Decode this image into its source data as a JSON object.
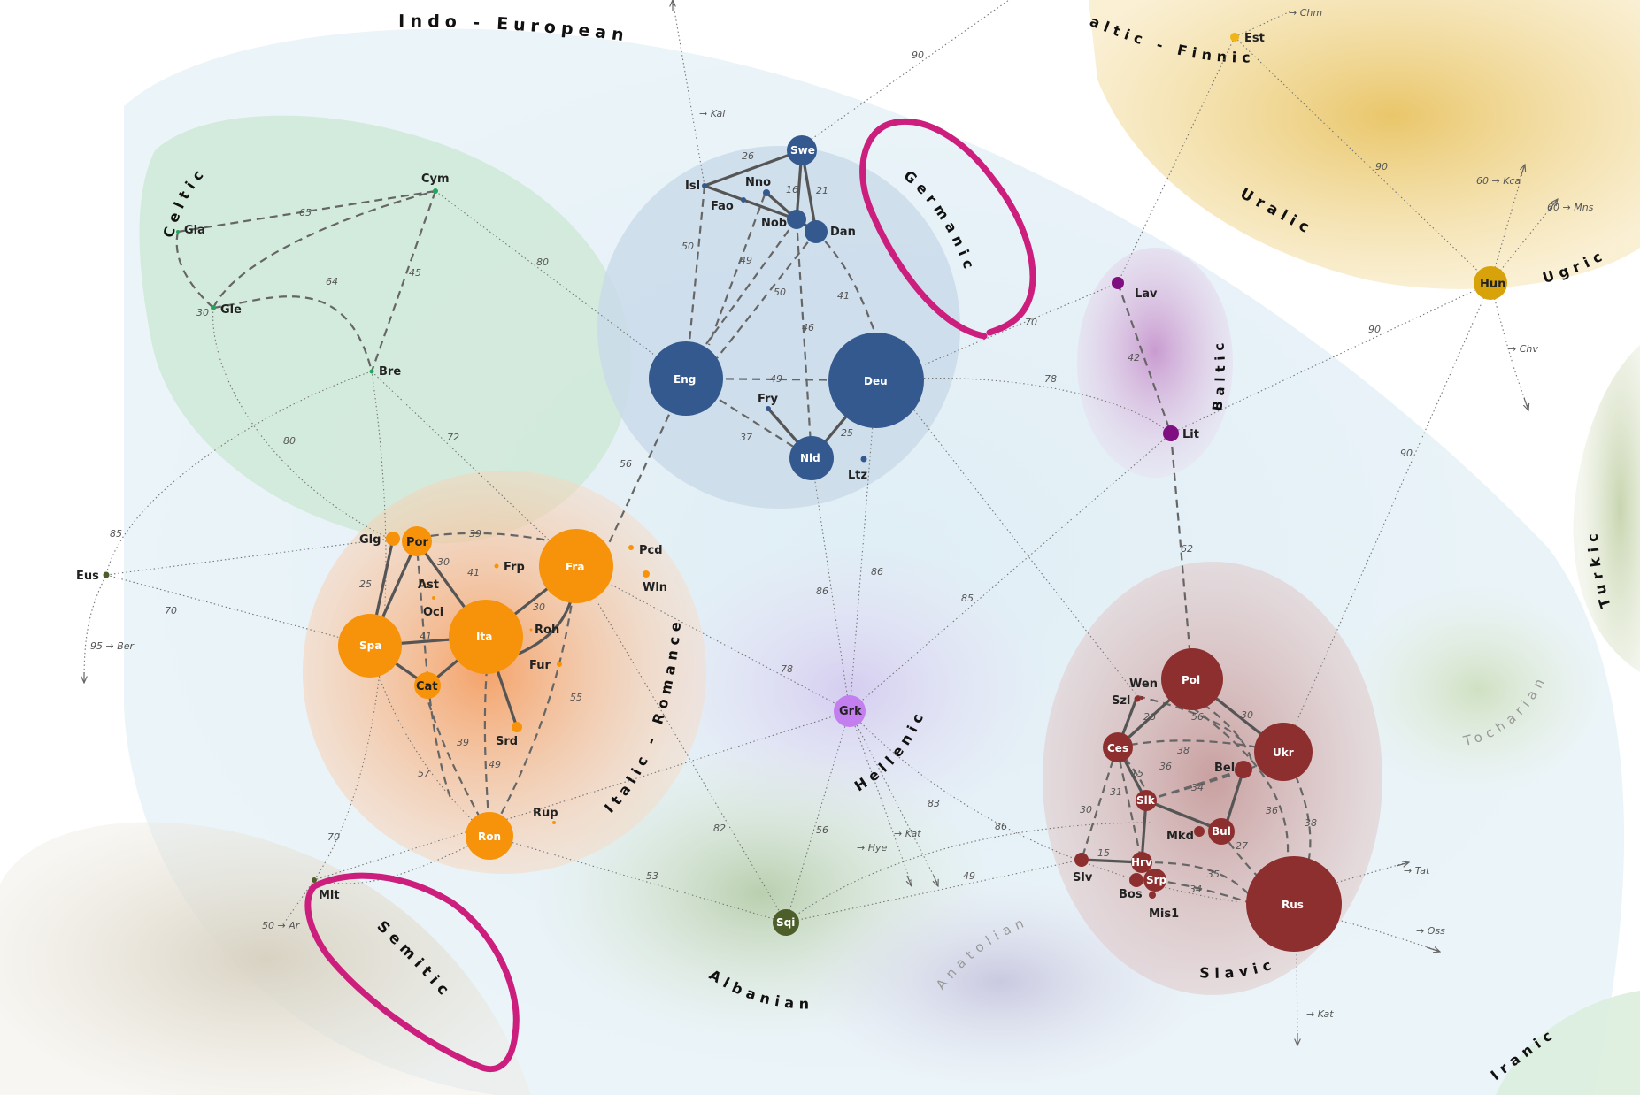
{
  "colors": {
    "germanic": "#34598e",
    "romance": "#f7930a",
    "slavic": "#8e2f2f",
    "baltic": "#7f0f80",
    "uralic": "#d7a20a",
    "finnic": "#f0b41a",
    "celtic": "#22a65a",
    "hellenic": "#c37ef0",
    "albanian": "#4d5e2b",
    "annotation": "#cc1e7c"
  },
  "groups": [
    {
      "id": "indo-european",
      "label": "Indo - European"
    },
    {
      "id": "celtic",
      "label": "Celtic"
    },
    {
      "id": "germanic",
      "label": "Germanic"
    },
    {
      "id": "italic-romance",
      "label": "Italic - Romance"
    },
    {
      "id": "baltic",
      "label": "Baltic"
    },
    {
      "id": "slavic",
      "label": "Slavic"
    },
    {
      "id": "hellenic",
      "label": "Hellenic"
    },
    {
      "id": "albanian",
      "label": "Albanian"
    },
    {
      "id": "semitic",
      "label": "Semitic"
    },
    {
      "id": "uralic",
      "label": "Uralic"
    },
    {
      "id": "ugric",
      "label": "Ugric"
    },
    {
      "id": "finnic",
      "label": "altic - Finnic"
    },
    {
      "id": "turkic",
      "label": "Turkic"
    },
    {
      "id": "iranic",
      "label": "Iranic"
    },
    {
      "id": "anatolian",
      "label": "Anatolian"
    },
    {
      "id": "tocharian",
      "label": "Tocharian"
    }
  ],
  "nodes": [
    {
      "id": "Swe",
      "label": "Swe",
      "group": "germanic"
    },
    {
      "id": "Isl",
      "label": "Isl",
      "group": "germanic"
    },
    {
      "id": "Nno",
      "label": "Nno",
      "group": "germanic"
    },
    {
      "id": "Fao",
      "label": "Fao",
      "group": "germanic"
    },
    {
      "id": "Nob",
      "label": "Nob",
      "group": "germanic"
    },
    {
      "id": "Dan",
      "label": "Dan",
      "group": "germanic"
    },
    {
      "id": "Eng",
      "label": "Eng",
      "group": "germanic"
    },
    {
      "id": "Deu",
      "label": "Deu",
      "group": "germanic"
    },
    {
      "id": "Fry",
      "label": "Fry",
      "group": "germanic"
    },
    {
      "id": "Nld",
      "label": "Nld",
      "group": "germanic"
    },
    {
      "id": "Ltz",
      "label": "Ltz",
      "group": "germanic"
    },
    {
      "id": "Cym",
      "label": "Cym",
      "group": "celtic"
    },
    {
      "id": "Gla",
      "label": "Gla",
      "group": "celtic"
    },
    {
      "id": "Gle",
      "label": "Gle",
      "group": "celtic"
    },
    {
      "id": "Bre",
      "label": "Bre",
      "group": "celtic"
    },
    {
      "id": "Eus",
      "label": "Eus",
      "group": "albanian"
    },
    {
      "id": "Glg",
      "label": "Glg",
      "group": "romance"
    },
    {
      "id": "Por",
      "label": "Por",
      "group": "romance"
    },
    {
      "id": "Frp",
      "label": "Frp",
      "group": "romance"
    },
    {
      "id": "Fra",
      "label": "Fra",
      "group": "romance"
    },
    {
      "id": "Pcd",
      "label": "Pcd",
      "group": "romance"
    },
    {
      "id": "Wln",
      "label": "Wln",
      "group": "romance"
    },
    {
      "id": "Ast",
      "label": "Ast",
      "group": "romance"
    },
    {
      "id": "Oci",
      "label": "Oci",
      "group": "romance"
    },
    {
      "id": "Spa",
      "label": "Spa",
      "group": "romance"
    },
    {
      "id": "Ita",
      "label": "Ita",
      "group": "romance"
    },
    {
      "id": "Roh",
      "label": "Roh",
      "group": "romance"
    },
    {
      "id": "Fur",
      "label": "Fur",
      "group": "romance"
    },
    {
      "id": "Cat",
      "label": "Cat",
      "group": "romance"
    },
    {
      "id": "Srd",
      "label": "Srd",
      "group": "romance"
    },
    {
      "id": "Ron",
      "label": "Ron",
      "group": "romance"
    },
    {
      "id": "Rup",
      "label": "Rup",
      "group": "romance"
    },
    {
      "id": "Grk",
      "label": "Grk",
      "group": "hellenic"
    },
    {
      "id": "Sqi",
      "label": "Sqi",
      "group": "albanian"
    },
    {
      "id": "Mlt",
      "label": "Mlt",
      "group": "albanian"
    },
    {
      "id": "Lav",
      "label": "Lav",
      "group": "baltic"
    },
    {
      "id": "Lit",
      "label": "Lit",
      "group": "baltic"
    },
    {
      "id": "Est",
      "label": "Est",
      "group": "finnic"
    },
    {
      "id": "Hun",
      "label": "Hun",
      "group": "uralic"
    },
    {
      "id": "Pol",
      "label": "Pol",
      "group": "slavic"
    },
    {
      "id": "Wen",
      "label": "Wen",
      "group": "slavic"
    },
    {
      "id": "Szl",
      "label": "Szl",
      "group": "slavic"
    },
    {
      "id": "Ces",
      "label": "Ces",
      "group": "slavic"
    },
    {
      "id": "Ukr",
      "label": "Ukr",
      "group": "slavic"
    },
    {
      "id": "Bel",
      "label": "Bel",
      "group": "slavic"
    },
    {
      "id": "Slk",
      "label": "Slk",
      "group": "slavic"
    },
    {
      "id": "Mkd",
      "label": "Mkd",
      "group": "slavic"
    },
    {
      "id": "Bul",
      "label": "Bul",
      "group": "slavic"
    },
    {
      "id": "Hrv",
      "label": "Hrv",
      "group": "slavic"
    },
    {
      "id": "Slv",
      "label": "Slv",
      "group": "slavic"
    },
    {
      "id": "Srp",
      "label": "Srp",
      "group": "slavic"
    },
    {
      "id": "Bos",
      "label": "Bos",
      "group": "slavic"
    },
    {
      "id": "Mis1",
      "label": "Mis1",
      "group": "slavic"
    },
    {
      "id": "Rus",
      "label": "Rus",
      "group": "slavic"
    }
  ],
  "edge_labels": [
    "26",
    "16",
    "21",
    "50",
    "49",
    "50",
    "46",
    "41",
    "49",
    "37",
    "25",
    "65",
    "64",
    "45",
    "30",
    "80",
    "80",
    "72",
    "85",
    "70",
    "39",
    "30",
    "41",
    "25",
    "41",
    "30",
    "55",
    "39",
    "49",
    "57",
    "56",
    "86",
    "86",
    "78",
    "85",
    "82",
    "56",
    "83",
    "86",
    "49",
    "53",
    "70",
    "90",
    "78",
    "70",
    "42",
    "62",
    "90",
    "90",
    "90",
    "26",
    "56",
    "30",
    "38",
    "36",
    "15",
    "34",
    "31",
    "30",
    "15",
    "27",
    "36",
    "35",
    "34",
    "38"
  ],
  "external": [
    {
      "id": "kal",
      "label": "→ Kal"
    },
    {
      "id": "chm",
      "label": "→ Chm"
    },
    {
      "id": "kca",
      "label": "60 → Kca"
    },
    {
      "id": "mns",
      "label": "60 → Mns"
    },
    {
      "id": "chv",
      "label": "→ Chv"
    },
    {
      "id": "ber",
      "label": "95 → Ber"
    },
    {
      "id": "ar",
      "label": "50 → Ar"
    },
    {
      "id": "hye",
      "label": "→ Hye"
    },
    {
      "id": "kat1",
      "label": "→ Kat"
    },
    {
      "id": "tat",
      "label": "→ Tat"
    },
    {
      "id": "oss",
      "label": "→ Oss"
    },
    {
      "id": "kat2",
      "label": "→ Kat"
    }
  ]
}
